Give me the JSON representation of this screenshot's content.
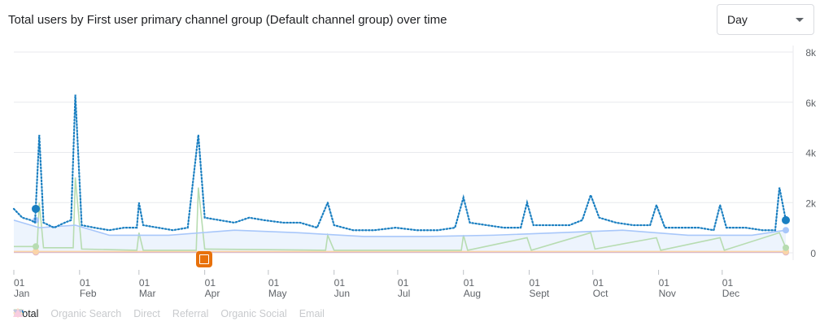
{
  "title": "Total users by First user primary channel group (Default channel group) over time",
  "granularity": {
    "selected": "Day"
  },
  "chart_data": {
    "type": "line",
    "ylim": [
      0,
      8000
    ],
    "yticks": [
      "0",
      "2k",
      "4k",
      "6k",
      "8k"
    ],
    "xticks": [
      {
        "d": "01",
        "m": "Jan"
      },
      {
        "d": "01",
        "m": "Feb"
      },
      {
        "d": "01",
        "m": "Mar"
      },
      {
        "d": "01",
        "m": "Apr"
      },
      {
        "d": "01",
        "m": "May"
      },
      {
        "d": "01",
        "m": "Jun"
      },
      {
        "d": "01",
        "m": "Jul"
      },
      {
        "d": "01",
        "m": "Aug"
      },
      {
        "d": "01",
        "m": "Sept"
      },
      {
        "d": "01",
        "m": "Oct"
      },
      {
        "d": "01",
        "m": "Nov"
      },
      {
        "d": "01",
        "m": "Dec"
      }
    ],
    "grid": true,
    "legend_position": "bottom",
    "series": [
      {
        "name": "Total",
        "color": "#1a73e8",
        "active": true,
        "points": [
          [
            "01-01",
            1750
          ],
          [
            "01-05",
            1400
          ],
          [
            "01-09",
            1300
          ],
          [
            "01-11",
            1200
          ],
          [
            "01-13",
            4700
          ],
          [
            "01-15",
            1200
          ],
          [
            "01-20",
            1000
          ],
          [
            "01-25",
            1200
          ],
          [
            "01-28",
            1300
          ],
          [
            "01-30",
            6300
          ],
          [
            "02-02",
            1100
          ],
          [
            "02-08",
            1000
          ],
          [
            "02-15",
            900
          ],
          [
            "02-22",
            1000
          ],
          [
            "02-28",
            1000
          ],
          [
            "03-01",
            2000
          ],
          [
            "03-03",
            1100
          ],
          [
            "03-10",
            1000
          ],
          [
            "03-17",
            900
          ],
          [
            "03-24",
            1000
          ],
          [
            "03-29",
            4700
          ],
          [
            "04-01",
            1400
          ],
          [
            "04-08",
            1300
          ],
          [
            "04-15",
            1200
          ],
          [
            "04-22",
            1400
          ],
          [
            "04-29",
            1300
          ],
          [
            "05-08",
            1200
          ],
          [
            "05-16",
            1200
          ],
          [
            "05-24",
            1000
          ],
          [
            "05-29",
            2000
          ],
          [
            "06-01",
            1100
          ],
          [
            "06-10",
            900
          ],
          [
            "06-20",
            900
          ],
          [
            "06-30",
            1000
          ],
          [
            "07-10",
            900
          ],
          [
            "07-20",
            900
          ],
          [
            "07-28",
            1000
          ],
          [
            "08-01",
            2200
          ],
          [
            "08-04",
            1200
          ],
          [
            "08-12",
            1100
          ],
          [
            "08-20",
            1000
          ],
          [
            "08-28",
            1000
          ],
          [
            "08-31",
            2000
          ],
          [
            "09-03",
            1100
          ],
          [
            "09-12",
            1100
          ],
          [
            "09-20",
            1100
          ],
          [
            "09-26",
            1300
          ],
          [
            "09-30",
            2300
          ],
          [
            "10-04",
            1400
          ],
          [
            "10-12",
            1200
          ],
          [
            "10-20",
            1100
          ],
          [
            "10-28",
            1100
          ],
          [
            "10-31",
            1900
          ],
          [
            "11-04",
            1000
          ],
          [
            "11-12",
            1000
          ],
          [
            "11-20",
            1000
          ],
          [
            "11-27",
            900
          ],
          [
            "11-30",
            1900
          ],
          [
            "12-03",
            1000
          ],
          [
            "12-12",
            1000
          ],
          [
            "12-20",
            900
          ],
          [
            "12-26",
            900
          ],
          [
            "12-28",
            2600
          ],
          [
            "12-31",
            1300
          ]
        ]
      },
      {
        "name": "Organic Search",
        "color": "#a8c7fa",
        "active": false,
        "points": [
          [
            "01-01",
            1300
          ],
          [
            "01-13",
            1000
          ],
          [
            "01-30",
            1100
          ],
          [
            "02-15",
            700
          ],
          [
            "03-15",
            700
          ],
          [
            "04-15",
            900
          ],
          [
            "05-15",
            800
          ],
          [
            "06-15",
            650
          ],
          [
            "07-15",
            650
          ],
          [
            "08-15",
            700
          ],
          [
            "09-15",
            800
          ],
          [
            "10-15",
            900
          ],
          [
            "11-15",
            700
          ],
          [
            "12-15",
            700
          ],
          [
            "12-31",
            900
          ]
        ]
      },
      {
        "name": "Direct",
        "color": "#b7dcb1",
        "active": false,
        "points": [
          [
            "01-01",
            250
          ],
          [
            "01-12",
            250
          ],
          [
            "01-13",
            2000
          ],
          [
            "01-15",
            200
          ],
          [
            "01-29",
            200
          ],
          [
            "01-30",
            3000
          ],
          [
            "02-02",
            150
          ],
          [
            "02-28",
            100
          ],
          [
            "03-01",
            800
          ],
          [
            "03-03",
            100
          ],
          [
            "03-28",
            100
          ],
          [
            "03-29",
            2600
          ],
          [
            "04-01",
            150
          ],
          [
            "05-28",
            100
          ],
          [
            "05-29",
            700
          ],
          [
            "06-01",
            100
          ],
          [
            "07-31",
            100
          ],
          [
            "08-01",
            700
          ],
          [
            "08-03",
            100
          ],
          [
            "08-31",
            600
          ],
          [
            "09-02",
            100
          ],
          [
            "09-30",
            800
          ],
          [
            "10-02",
            150
          ],
          [
            "10-31",
            600
          ],
          [
            "11-02",
            100
          ],
          [
            "11-30",
            600
          ],
          [
            "12-02",
            100
          ],
          [
            "12-28",
            800
          ],
          [
            "12-31",
            200
          ]
        ]
      },
      {
        "name": "Referral",
        "color": "#fbd4a8",
        "active": false,
        "points": [
          [
            "01-01",
            50
          ],
          [
            "12-31",
            50
          ]
        ]
      },
      {
        "name": "Organic Social",
        "color": "#a9a9cf",
        "active": false,
        "points": [
          [
            "01-01",
            40
          ],
          [
            "12-31",
            40
          ]
        ]
      },
      {
        "name": "Email",
        "color": "#f6b8d0",
        "active": false,
        "points": [
          [
            "01-01",
            20
          ],
          [
            "12-31",
            20
          ]
        ]
      }
    ]
  }
}
